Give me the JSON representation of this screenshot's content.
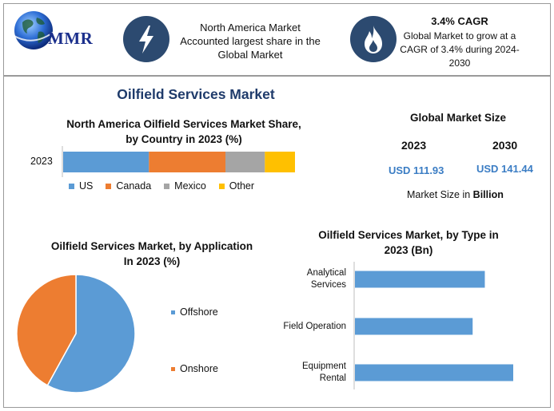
{
  "header": {
    "logo_text": "MMR",
    "region_text_line1": "North America Market",
    "region_text_line2": "Accounted largest share in the",
    "region_text_line3": "Global Market",
    "cagr_title": "3.4% CAGR",
    "cagr_line1": "Global Market to grow at a",
    "cagr_line2": "CAGR of 3.4% during 2024-",
    "cagr_line3": "2030",
    "icons": [
      "globe-icon",
      "lightning-icon",
      "flame-icon"
    ]
  },
  "main_title": "Oilfield Services Market",
  "global_market": {
    "title": "Global Market Size",
    "year_a": "2023",
    "year_b": "2030",
    "value_a": "USD 111.93",
    "value_b": "USD 141.44",
    "unit_prefix": "Market Size in ",
    "unit_bold": "Billion"
  },
  "colors": {
    "blue": "#5b9bd5",
    "orange": "#ed7d31",
    "gray": "#a5a5a5",
    "yellow": "#ffc000",
    "badge": "#2c4a70",
    "title": "#1f3b6b",
    "value": "#3b7dc4"
  },
  "chart_data": [
    {
      "type": "bar",
      "stacked": true,
      "orientation": "horizontal",
      "title_line1": "North America Oilfield Services Market Share,",
      "title_line2": "by Country in 2023 (%)",
      "categories": [
        "2023"
      ],
      "series": [
        {
          "name": "US",
          "values": [
            37
          ],
          "color": "#5b9bd5"
        },
        {
          "name": "Canada",
          "values": [
            33
          ],
          "color": "#ed7d31"
        },
        {
          "name": "Mexico",
          "values": [
            17
          ],
          "color": "#a5a5a5"
        },
        {
          "name": "Other",
          "values": [
            13
          ],
          "color": "#ffc000"
        }
      ],
      "legend_position": "bottom",
      "grid": false
    },
    {
      "type": "pie",
      "title_line1": "Oilfield Services Market, by Application",
      "title_line2": "In 2023 (%)",
      "slices": [
        {
          "name": "Offshore",
          "value": 58,
          "color": "#5b9bd5"
        },
        {
          "name": "Onshore",
          "value": 42,
          "color": "#ed7d31"
        }
      ],
      "legend_position": "right"
    },
    {
      "type": "bar",
      "orientation": "horizontal",
      "title_line1": "Oilfield Services Market, by Type in",
      "title_line2": "2023 (Bn)",
      "categories": [
        {
          "line1": "Analytical",
          "line2": "Services"
        },
        {
          "line1": "Field Operation",
          "line2": ""
        },
        {
          "line1": "Equipment",
          "line2": "Rental"
        }
      ],
      "values": [
        32,
        29,
        39
      ],
      "color": "#5b9bd5",
      "grid": false
    }
  ]
}
